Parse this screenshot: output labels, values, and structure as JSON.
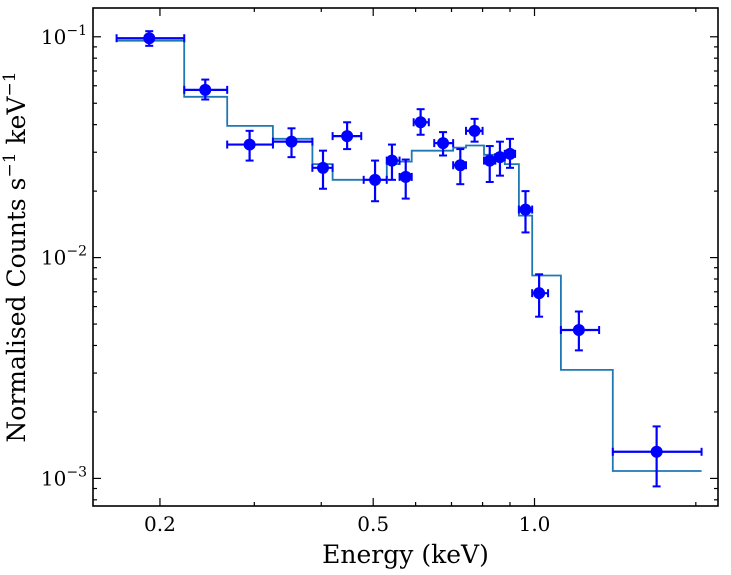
{
  "chart_data": {
    "type": "scatter",
    "title": "",
    "xlabel": "Energy (keV)",
    "ylabel_base": "Normalised Counts s",
    "ylabel_exp1": "−1",
    "ylabel_mid": " keV",
    "ylabel_exp2": "−1",
    "xscale": "log",
    "yscale": "log",
    "xlim": [
      0.15,
      2.2
    ],
    "ylim": [
      0.00075,
      0.135
    ],
    "x_ticks": [
      {
        "value": 0.2,
        "label": "0.2"
      },
      {
        "value": 0.5,
        "label": "0.5"
      },
      {
        "value": 1.0,
        "label": "1.0"
      }
    ],
    "y_ticks": [
      {
        "value": 0.1,
        "base": "10",
        "exp": "−1"
      },
      {
        "value": 0.01,
        "base": "10",
        "exp": "−2"
      },
      {
        "value": 0.001,
        "base": "10",
        "exp": "−3"
      }
    ],
    "grid": false,
    "series": [
      {
        "style": "points_with_errorbars",
        "color": "#0000ff",
        "points": [
          {
            "x": 0.191,
            "y": 0.0985,
            "xlo": 0.166,
            "xhi": 0.222,
            "ylo": 0.091,
            "yhi": 0.106
          },
          {
            "x": 0.243,
            "y": 0.0575,
            "xlo": 0.222,
            "xhi": 0.267,
            "ylo": 0.052,
            "yhi": 0.064
          },
          {
            "x": 0.294,
            "y": 0.0325,
            "xlo": 0.267,
            "xhi": 0.325,
            "ylo": 0.0275,
            "yhi": 0.0375
          },
          {
            "x": 0.352,
            "y": 0.0335,
            "xlo": 0.325,
            "xhi": 0.385,
            "ylo": 0.0285,
            "yhi": 0.0385
          },
          {
            "x": 0.403,
            "y": 0.0255,
            "xlo": 0.385,
            "xhi": 0.42,
            "ylo": 0.0205,
            "yhi": 0.0305
          },
          {
            "x": 0.447,
            "y": 0.0355,
            "xlo": 0.42,
            "xhi": 0.475,
            "ylo": 0.031,
            "yhi": 0.041
          },
          {
            "x": 0.504,
            "y": 0.0225,
            "xlo": 0.48,
            "xhi": 0.53,
            "ylo": 0.018,
            "yhi": 0.0275
          },
          {
            "x": 0.542,
            "y": 0.0275,
            "xlo": 0.53,
            "xhi": 0.56,
            "ylo": 0.0225,
            "yhi": 0.0325
          },
          {
            "x": 0.575,
            "y": 0.0232,
            "xlo": 0.56,
            "xhi": 0.59,
            "ylo": 0.0185,
            "yhi": 0.0278
          },
          {
            "x": 0.613,
            "y": 0.041,
            "xlo": 0.595,
            "xhi": 0.635,
            "ylo": 0.036,
            "yhi": 0.047
          },
          {
            "x": 0.675,
            "y": 0.033,
            "xlo": 0.65,
            "xhi": 0.705,
            "ylo": 0.029,
            "yhi": 0.037
          },
          {
            "x": 0.727,
            "y": 0.0262,
            "xlo": 0.705,
            "xhi": 0.745,
            "ylo": 0.0215,
            "yhi": 0.031
          },
          {
            "x": 0.773,
            "y": 0.0375,
            "xlo": 0.745,
            "xhi": 0.8,
            "ylo": 0.0335,
            "yhi": 0.0425
          },
          {
            "x": 0.825,
            "y": 0.0275,
            "xlo": 0.805,
            "xhi": 0.845,
            "ylo": 0.022,
            "yhi": 0.032
          },
          {
            "x": 0.862,
            "y": 0.0285,
            "xlo": 0.845,
            "xhi": 0.88,
            "ylo": 0.0235,
            "yhi": 0.0335
          },
          {
            "x": 0.9,
            "y": 0.0295,
            "xlo": 0.88,
            "xhi": 0.92,
            "ylo": 0.0255,
            "yhi": 0.0345
          },
          {
            "x": 0.962,
            "y": 0.0165,
            "xlo": 0.935,
            "xhi": 0.99,
            "ylo": 0.013,
            "yhi": 0.02
          },
          {
            "x": 1.02,
            "y": 0.0069,
            "xlo": 0.99,
            "xhi": 1.06,
            "ylo": 0.0054,
            "yhi": 0.0084
          },
          {
            "x": 1.21,
            "y": 0.0047,
            "xlo": 1.12,
            "xhi": 1.32,
            "ylo": 0.0038,
            "yhi": 0.0057
          },
          {
            "x": 1.69,
            "y": 0.00132,
            "xlo": 1.4,
            "xhi": 2.05,
            "ylo": 0.00092,
            "yhi": 0.00172
          }
        ]
      },
      {
        "style": "step_model",
        "color": "#1f77b4",
        "steps": [
          {
            "x0": 0.166,
            "x1": 0.222,
            "y": 0.096
          },
          {
            "x0": 0.222,
            "x1": 0.267,
            "y": 0.0535
          },
          {
            "x0": 0.267,
            "x1": 0.325,
            "y": 0.0395
          },
          {
            "x0": 0.325,
            "x1": 0.385,
            "y": 0.0345
          },
          {
            "x0": 0.385,
            "x1": 0.42,
            "y": 0.0265
          },
          {
            "x0": 0.42,
            "x1": 0.53,
            "y": 0.0225
          },
          {
            "x0": 0.53,
            "x1": 0.56,
            "y": 0.0265
          },
          {
            "x0": 0.56,
            "x1": 0.59,
            "y": 0.0272
          },
          {
            "x0": 0.59,
            "x1": 0.705,
            "y": 0.0305
          },
          {
            "x0": 0.705,
            "x1": 0.745,
            "y": 0.0315
          },
          {
            "x0": 0.745,
            "x1": 0.805,
            "y": 0.0322
          },
          {
            "x0": 0.805,
            "x1": 0.88,
            "y": 0.0292
          },
          {
            "x0": 0.88,
            "x1": 0.935,
            "y": 0.0265
          },
          {
            "x0": 0.935,
            "x1": 0.99,
            "y": 0.0155
          },
          {
            "x0": 0.99,
            "x1": 1.12,
            "y": 0.0083
          },
          {
            "x0": 1.12,
            "x1": 1.4,
            "y": 0.0031
          },
          {
            "x0": 1.4,
            "x1": 2.05,
            "y": 0.00108
          }
        ]
      }
    ]
  }
}
